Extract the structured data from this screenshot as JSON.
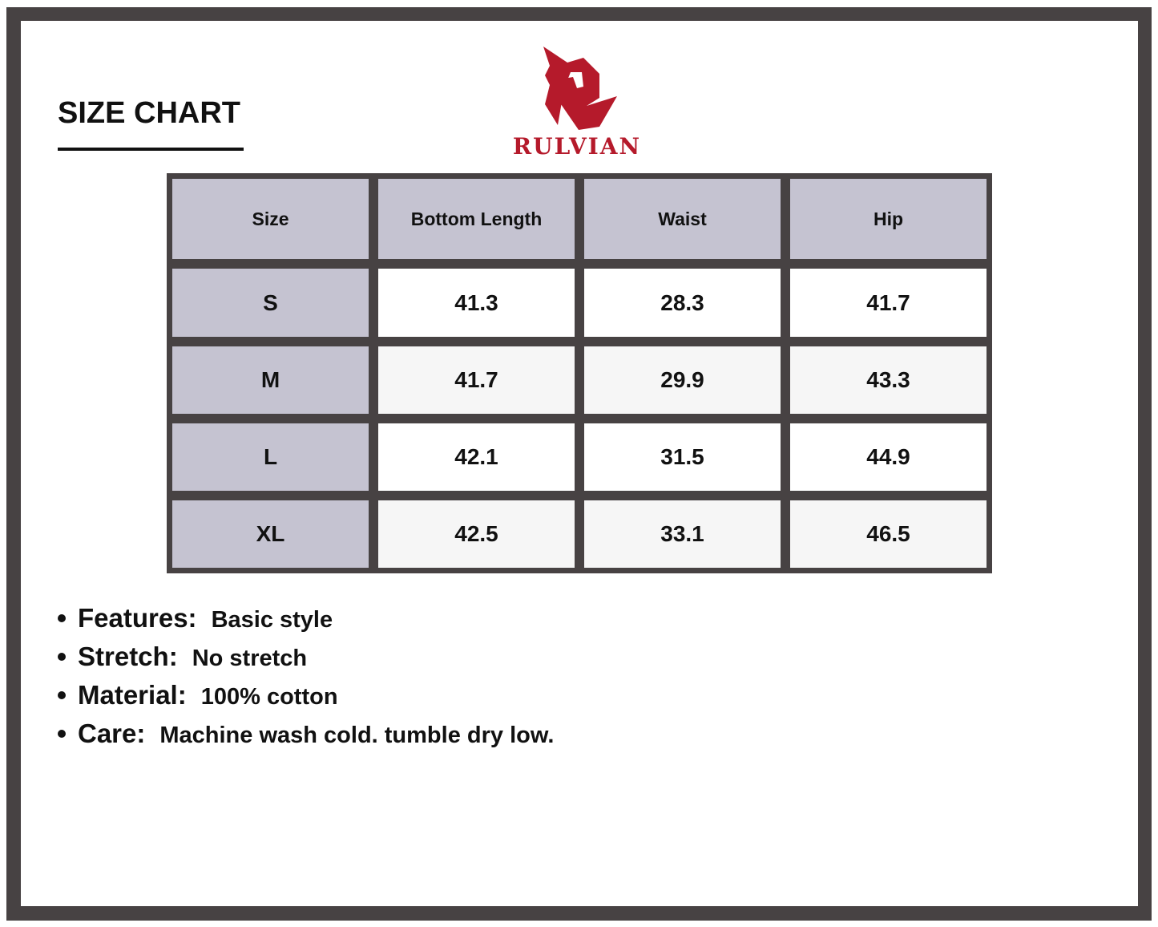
{
  "title": "SIZE CHART",
  "brand": {
    "name": "RULVIAN",
    "color": "#b51a2b"
  },
  "table": {
    "headers": [
      "Size",
      "Bottom Length",
      "Waist",
      "Hip"
    ],
    "rows": [
      [
        "S",
        "41.3",
        "28.3",
        "41.7"
      ],
      [
        "M",
        "41.7",
        "29.9",
        "43.3"
      ],
      [
        "L",
        "42.1",
        "31.5",
        "44.9"
      ],
      [
        "XL",
        "42.5",
        "33.1",
        "46.5"
      ]
    ]
  },
  "notes": [
    {
      "label": "Features:",
      "text": "Basic style"
    },
    {
      "label": "Stretch:",
      "text": "No stretch"
    },
    {
      "label": "Material:",
      "text": "100% cotton"
    },
    {
      "label": "Care:",
      "text": "Machine wash cold. tumble dry low."
    }
  ]
}
